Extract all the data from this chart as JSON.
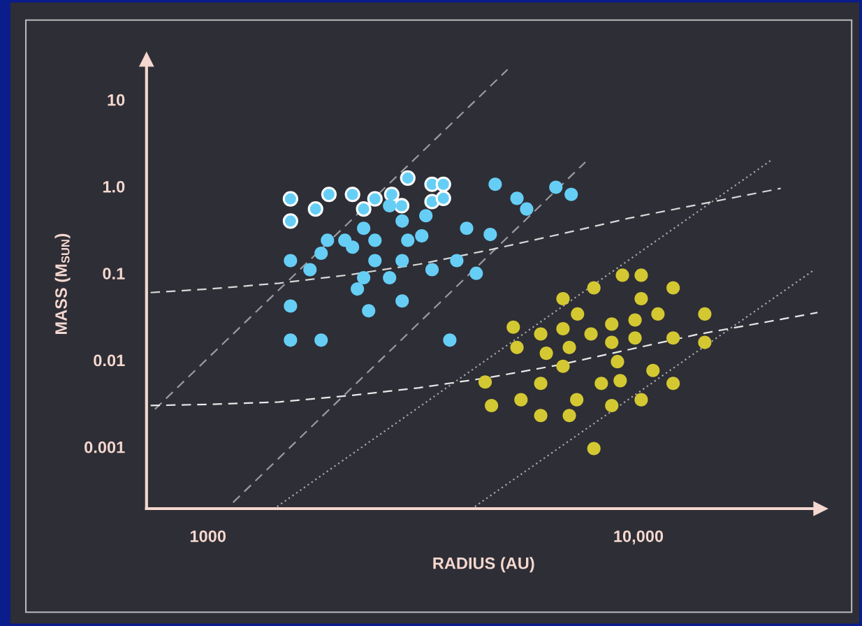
{
  "chart_data": {
    "type": "scatter",
    "xlabel": "RADIUS (AU)",
    "ylabel": "MASS (M$_{SUN}$)",
    "log": "xy",
    "xlim": [
      720,
      26500
    ],
    "ylim": [
      0.000195,
      29
    ],
    "xticks": [
      {
        "value": 1000,
        "label": "1000"
      },
      {
        "value": 10000,
        "label": "10,000"
      }
    ],
    "yticks": [
      {
        "value": 0.001,
        "label": "0.001"
      },
      {
        "value": 0.01,
        "label": "0.01"
      },
      {
        "value": 0.1,
        "label": "0.1"
      },
      {
        "value": 1,
        "label": "1.0"
      },
      {
        "value": 10,
        "label": "10"
      }
    ],
    "grid": false,
    "legend": false,
    "marker": "circle",
    "series": [
      {
        "type": "line",
        "color": "#9a9a9e",
        "line_style": "dashed",
        "marker": "none",
        "x": [
          753,
          4966
        ],
        "values": [
          0.00272,
          22.2
        ]
      },
      {
        "type": "line",
        "color": "#9a9a9e",
        "line_style": "dashed",
        "marker": "none",
        "x": [
          1144,
          7530
        ],
        "values": [
          0.00023,
          1.91
        ]
      },
      {
        "type": "line",
        "color": "#a8a8ac",
        "line_style": "dotted",
        "marker": "none",
        "x": [
          1448,
          20300
        ],
        "values": [
          0.000206,
          1.99
        ]
      },
      {
        "type": "line",
        "color": "#a8a8ac",
        "line_style": "dotted",
        "marker": "none",
        "x": [
          4170,
          25500
        ],
        "values": [
          0.000206,
          0.108
        ]
      },
      {
        "type": "line",
        "color": "#d8d8d8",
        "line_style": "dashed",
        "marker": "none",
        "x": [
          736,
          1008,
          1464,
          2127,
          3090,
          4490,
          6530,
          9490,
          13790,
          21400
        ],
        "values": [
          0.06,
          0.066,
          0.077,
          0.096,
          0.127,
          0.185,
          0.28,
          0.43,
          0.62,
          0.95
        ]
      },
      {
        "type": "line",
        "color": "#e8e8e8",
        "line_style": "dashed",
        "marker": "none",
        "x": [
          736,
          1008,
          1464,
          2127,
          3090,
          4490,
          6530,
          9490,
          13790,
          20060,
          26060
        ],
        "values": [
          0.003,
          0.0031,
          0.0033,
          0.0039,
          0.0048,
          0.0063,
          0.0088,
          0.0132,
          0.0199,
          0.0278,
          0.0353
        ]
      },
      {
        "color": "#66cef5",
        "x": [
          1555,
          1555,
          1778,
          1910,
          2167,
          2300,
          2443,
          2673,
          2818,
          2912,
          3316,
          3523,
          3316,
          3523
        ],
        "values": [
          0.72,
          0.4,
          0.55,
          0.81,
          0.81,
          0.55,
          0.72,
          0.81,
          0.6,
          1.25,
          1.06,
          1.06,
          0.67,
          0.73
        ]
      },
      {
        "color": "#66cef5",
        "x": [
          2642,
          4648,
          5222,
          5500,
          6430,
          6980,
          2826,
          3208,
          2300,
          3990,
          4527,
          3138,
          1895,
          2080,
          2167,
          2443,
          2912,
          1832,
          1555,
          1726,
          2443,
          2826,
          3785,
          3316,
          4200,
          2300,
          2642,
          2224,
          1555,
          2826,
          2362,
          1555,
          1832,
          3646
        ],
        "values": [
          0.6,
          1.06,
          0.73,
          0.55,
          0.98,
          0.81,
          0.4,
          0.46,
          0.33,
          0.33,
          0.28,
          0.27,
          0.24,
          0.24,
          0.2,
          0.24,
          0.24,
          0.17,
          0.14,
          0.11,
          0.14,
          0.14,
          0.14,
          0.11,
          0.1,
          0.089,
          0.089,
          0.066,
          0.042,
          0.048,
          0.037,
          0.017,
          0.017,
          0.017
        ]
      },
      {
        "color": "#d4c832",
        "x": [
          9180,
          10150,
          7880,
          12040,
          6680,
          10150,
          7220,
          11100,
          14260,
          5120,
          5930,
          6680,
          7760,
          8670,
          9820,
          8670,
          9820,
          12040,
          14260,
          5222,
          6110,
          6910,
          8940,
          6680,
          10810,
          4405,
          5930,
          8200,
          9070,
          12040,
          5335,
          7190,
          10150,
          4557,
          8670,
          5930,
          6910,
          7880
        ],
        "values": [
          0.095,
          0.095,
          0.068,
          0.068,
          0.051,
          0.051,
          0.034,
          0.034,
          0.034,
          0.024,
          0.02,
          0.023,
          0.02,
          0.026,
          0.029,
          0.016,
          0.018,
          0.018,
          0.016,
          0.014,
          0.012,
          0.014,
          0.0096,
          0.0085,
          0.0076,
          0.0056,
          0.0054,
          0.0054,
          0.0058,
          0.0054,
          0.0035,
          0.0035,
          0.0035,
          0.003,
          0.003,
          0.0023,
          0.0023,
          0.00096
        ]
      }
    ]
  }
}
